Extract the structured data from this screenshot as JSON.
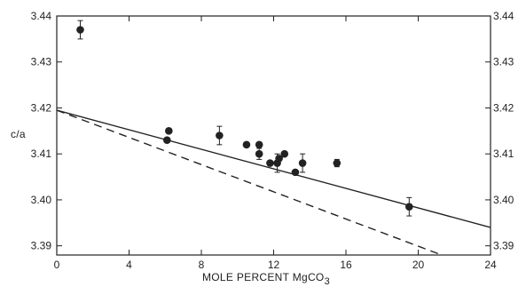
{
  "chart_data": {
    "type": "scatter",
    "title": "",
    "xlabel": "MOLE PERCENT MgCO",
    "xlabel_subscript": "3",
    "ylabel": "c/a",
    "xlim": [
      0,
      24
    ],
    "ylim": [
      3.388,
      3.44
    ],
    "x_ticks": [
      0,
      4,
      8,
      12,
      16,
      20,
      24
    ],
    "y_ticks": [
      3.39,
      3.4,
      3.41,
      3.42,
      3.43,
      3.44
    ],
    "y_tick_labels": [
      "3.39",
      "3.40",
      "3.41",
      "3.42",
      "3.43",
      "3.44"
    ],
    "grid": false,
    "right_axis_labels": true,
    "points": [
      {
        "x": 1.3,
        "y": 3.437,
        "err": 0.002
      },
      {
        "x": 6.2,
        "y": 3.415,
        "err": 0
      },
      {
        "x": 6.1,
        "y": 3.413,
        "err": 0
      },
      {
        "x": 9.0,
        "y": 3.414,
        "err": 0.002
      },
      {
        "x": 10.5,
        "y": 3.412,
        "err": 0
      },
      {
        "x": 11.2,
        "y": 3.412,
        "err": 0
      },
      {
        "x": 11.2,
        "y": 3.41,
        "err": 0.0012
      },
      {
        "x": 11.8,
        "y": 3.408,
        "err": 0
      },
      {
        "x": 12.2,
        "y": 3.408,
        "err": 0.002
      },
      {
        "x": 12.3,
        "y": 3.409,
        "err": 0
      },
      {
        "x": 12.6,
        "y": 3.41,
        "err": 0
      },
      {
        "x": 13.2,
        "y": 3.406,
        "err": 0
      },
      {
        "x": 13.6,
        "y": 3.408,
        "err": 0.002
      },
      {
        "x": 15.5,
        "y": 3.408,
        "err": 0.0008
      },
      {
        "x": 19.5,
        "y": 3.3985,
        "err": 0.002
      }
    ],
    "lines": [
      {
        "style": "solid",
        "x": [
          0,
          24
        ],
        "y": [
          3.4195,
          3.394
        ]
      },
      {
        "style": "dashed",
        "x": [
          0,
          21.3
        ],
        "y": [
          3.4195,
          3.388
        ]
      }
    ],
    "colors": {
      "ink": "#222222",
      "background": "#ffffff"
    }
  }
}
